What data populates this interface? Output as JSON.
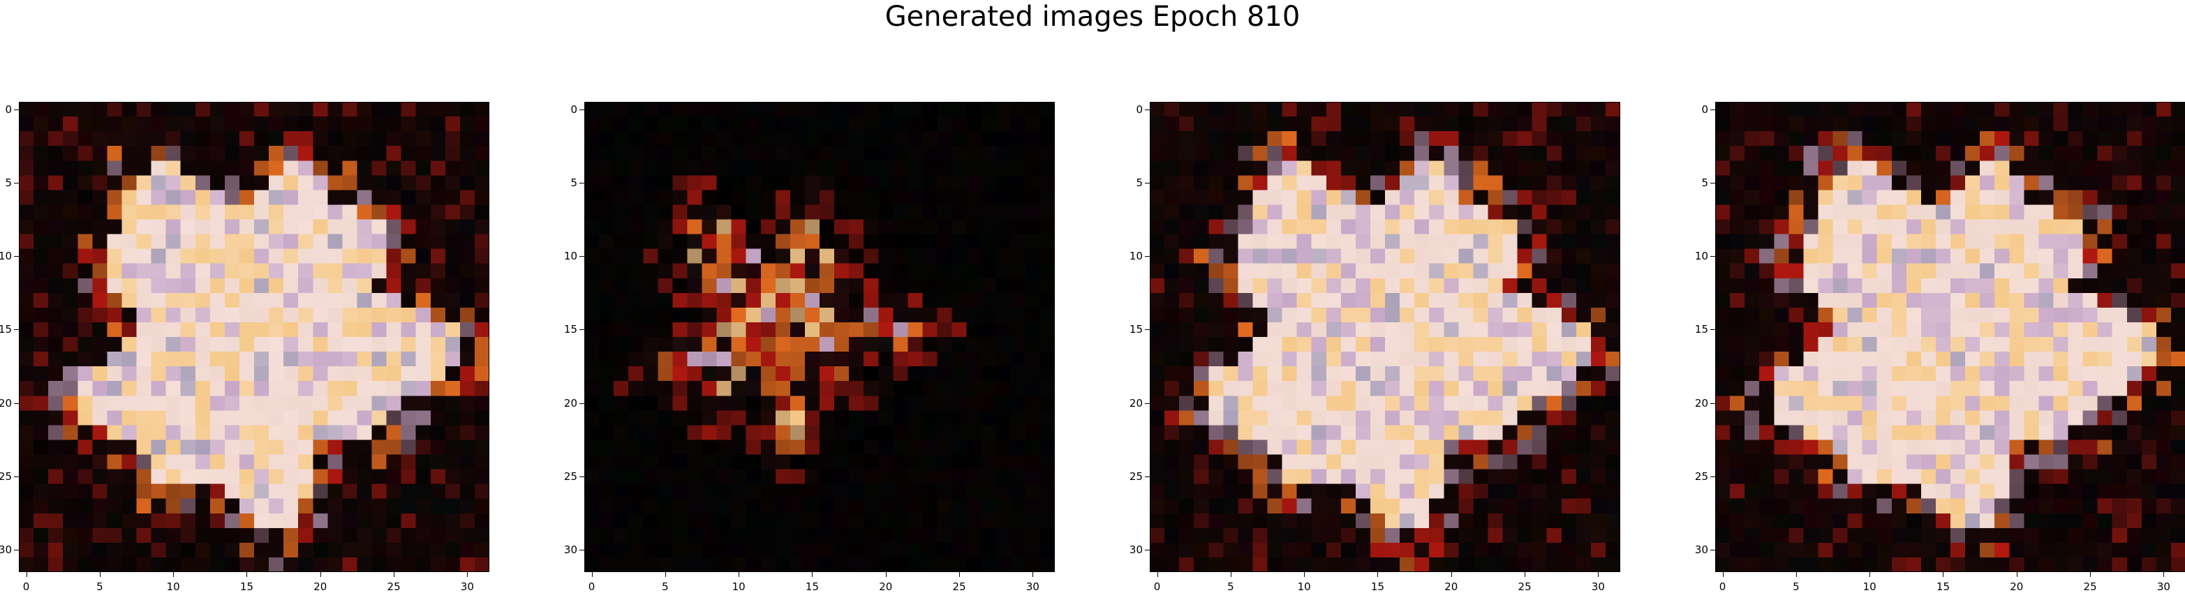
{
  "title": "Generated images Epoch 810",
  "axis_ticks": [
    "0",
    "5",
    "10",
    "15",
    "20",
    "25",
    "30"
  ],
  "images": [
    {
      "name": "generated-image-1",
      "style": "full-a"
    },
    {
      "name": "generated-image-2",
      "style": "sparse"
    },
    {
      "name": "generated-image-3",
      "style": "full-b"
    },
    {
      "name": "generated-image-4",
      "style": "full-c"
    }
  ],
  "palette": {
    "background": "#ffffff",
    "pixel_center": "#f0d8d0",
    "pixel_warm": "#f5c98a",
    "pixel_lavender": "#c8a8c8",
    "pixel_dark": "#1a0808",
    "pixel_orange": "#e06a20",
    "pixel_red": "#b01810"
  }
}
